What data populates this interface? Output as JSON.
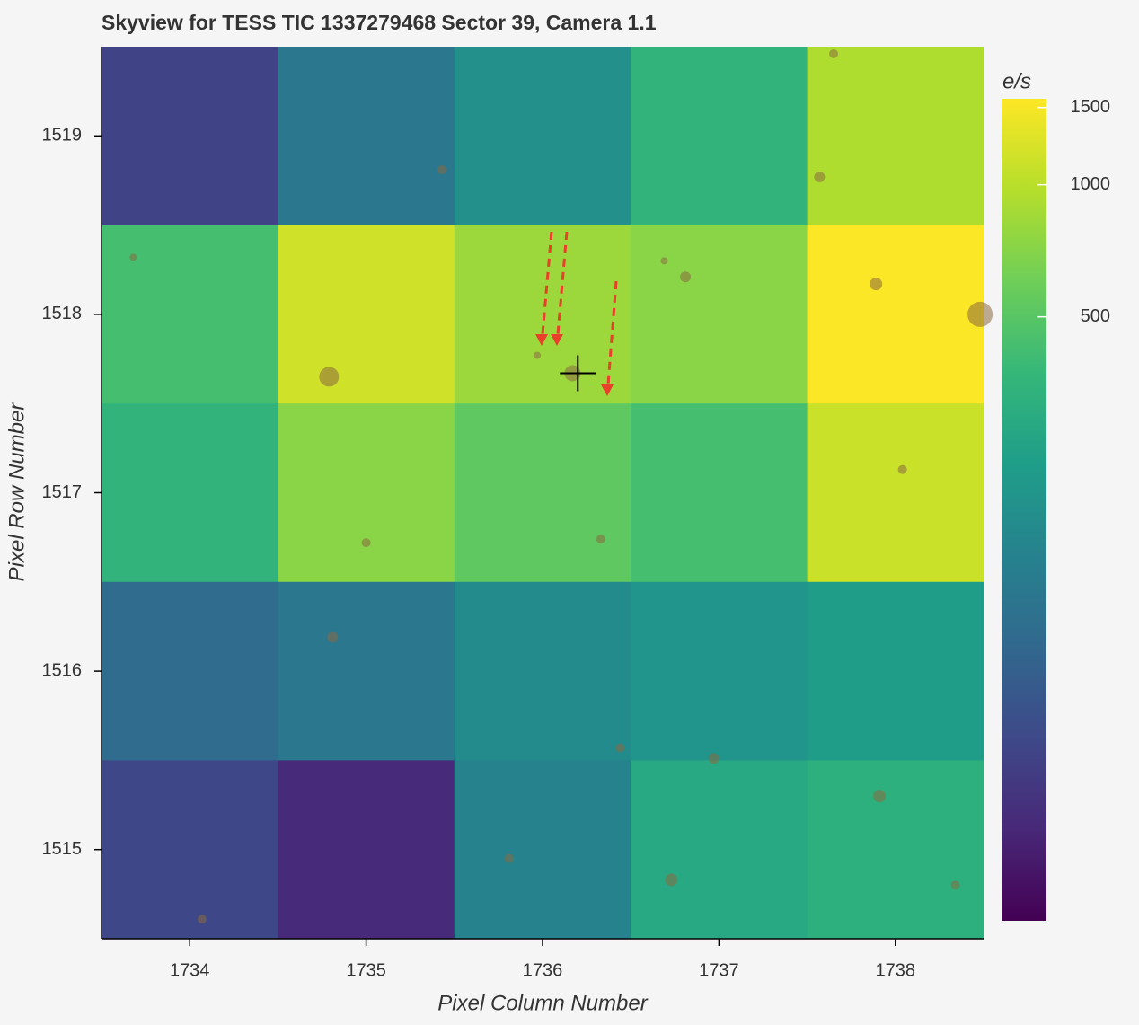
{
  "chart_data": {
    "type": "heatmap",
    "title": "Skyview for TESS TIC 1337279468 Sector 39, Camera 1.1",
    "x_label": "Pixel Column Number",
    "y_label": "Pixel Row Number",
    "colorbar_label": "e/s",
    "x": [
      1734,
      1735,
      1736,
      1737,
      1738
    ],
    "y": [
      1519,
      1518,
      1517,
      1516,
      1515
    ],
    "values": [
      [
        50,
        117,
        181,
        347,
        936
      ],
      [
        430,
        1161,
        822,
        722,
        1550
      ],
      [
        347,
        722,
        533,
        430,
        1112
      ],
      [
        95,
        117,
        166,
        198,
        225
      ],
      [
        54,
        35,
        146,
        279,
        317
      ]
    ],
    "xlim": [
      1733.5,
      1738.5
    ],
    "ylim": [
      1514.5,
      1519.5
    ],
    "xticks": [
      1734,
      1735,
      1736,
      1737,
      1738
    ],
    "yticks": [
      1515,
      1516,
      1517,
      1518,
      1519
    ],
    "clim": [
      21,
      1570
    ],
    "cticks": [
      500,
      1000,
      1500
    ],
    "color_scale": "log",
    "colormap": [
      "#440154",
      "#482878",
      "#3e4989",
      "#31688e",
      "#26828e",
      "#1f9e89",
      "#35b779",
      "#6ece58",
      "#b5de2b",
      "#fde725"
    ],
    "stars": {
      "color": "#8a6a40",
      "x": [
        1734.79,
        1738.48,
        1737.89,
        1736.17,
        1736.81,
        1737.57,
        1737.91,
        1736.73,
        1736.97,
        1734.81,
        1738.04,
        1736.33,
        1735.43,
        1737.65,
        1736.69,
        1735.0,
        1735.97,
        1733.68,
        1736.44,
        1738.34,
        1734.07,
        1735.81
      ],
      "y": [
        1517.65,
        1518.0,
        1518.17,
        1517.67,
        1518.21,
        1518.77,
        1515.3,
        1514.83,
        1515.51,
        1516.19,
        1517.13,
        1516.74,
        1518.81,
        1519.46,
        1518.3,
        1516.72,
        1517.77,
        1518.32,
        1515.57,
        1514.8,
        1514.61,
        1514.95
      ],
      "sizes": [
        22,
        28,
        14,
        18,
        12,
        12,
        14,
        14,
        12,
        12,
        10,
        10,
        10,
        10,
        8,
        10,
        8,
        8,
        10,
        10,
        10,
        10
      ]
    },
    "target": {
      "x": 1736.2,
      "y": 1517.67
    }
  }
}
